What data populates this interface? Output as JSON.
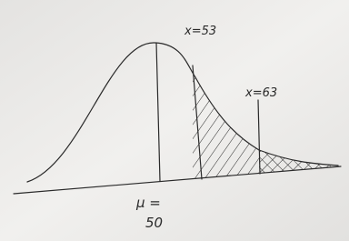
{
  "annotations": [
    {
      "label": "x=53"
    },
    {
      "label": "x=63"
    },
    {
      "label": "μ ="
    },
    {
      "label": "50"
    }
  ]
}
